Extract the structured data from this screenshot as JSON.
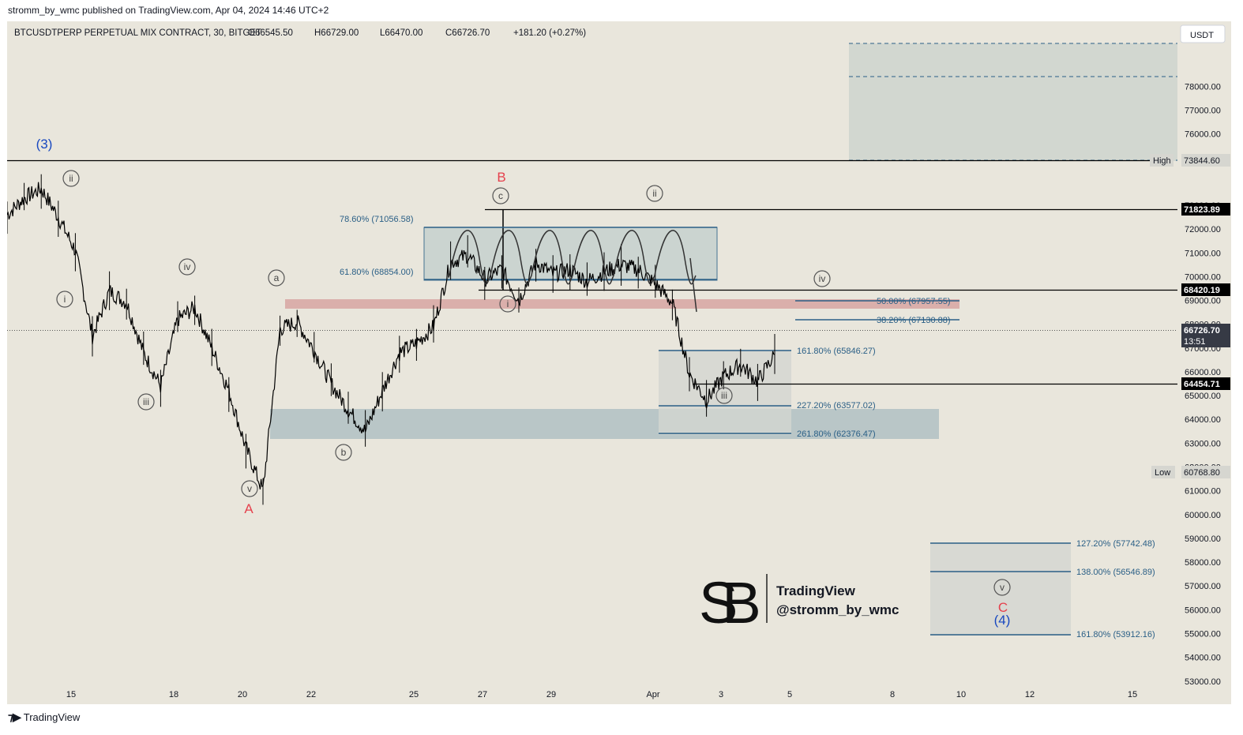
{
  "publish_line": "stromm_by_wmc published on TradingView.com, Apr 04, 2024 14:46 UTC+2",
  "footer_brand": "TradingView",
  "watermark": {
    "brand": "TradingView",
    "handle": "@stromm_by_wmc"
  },
  "colors": {
    "background": "#e9e6dc",
    "candle": "#000000",
    "zone_blue": "#7f9fae",
    "zone_red": "#d08b8b",
    "fib_line": "#2a5f86",
    "label_red": "#e5414d",
    "label_blue": "#1848c0"
  },
  "chart_data": {
    "type": "line",
    "header": {
      "symbol": "BTCUSDTPERP PERPETUAL MIX CONTRACT, 30, BITGET",
      "open": "O66545.50",
      "high": "H66729.00",
      "low": "L66470.00",
      "close": "C66726.70",
      "change": "+181.20 (+0.27%)"
    },
    "currency": "USDT",
    "ylim": [
      52000,
      79500
    ],
    "y_ticks": [
      "78000.00",
      "77000.00",
      "76000.00",
      "75000.00",
      "73000.00",
      "72000.00",
      "71000.00",
      "70000.00",
      "69000.00",
      "68000.00",
      "67000.00",
      "66000.00",
      "65000.00",
      "64000.00",
      "63000.00",
      "62000.00",
      "61000.00",
      "60000.00",
      "59000.00",
      "58000.00",
      "57000.00",
      "56000.00",
      "55000.00",
      "54000.00",
      "53000.00",
      "52000.00"
    ],
    "x_ticks": [
      "15",
      "18",
      "20",
      "22",
      "25",
      "27",
      "29",
      "Apr",
      "3",
      "5",
      "8",
      "10",
      "12",
      "15"
    ],
    "series": [
      {
        "x": [
          "Mar 13",
          "Mar 13 12h",
          "Mar 14",
          "Mar 14 12h",
          "Mar 15",
          "Mar 15 12h",
          "Mar 16",
          "Mar 16 12h",
          "Mar 17",
          "Mar 17 12h",
          "Mar 18",
          "Mar 18 12h",
          "Mar 19",
          "Mar 19 12h",
          "Mar 20",
          "Mar 20 12h",
          "Mar 21",
          "Mar 21 12h",
          "Mar 22",
          "Mar 22 12h",
          "Mar 23",
          "Mar 23 12h",
          "Mar 24",
          "Mar 24 12h",
          "Mar 25",
          "Mar 25 12h",
          "Mar 26",
          "Mar 26 12h",
          "Mar 27",
          "Mar 27 12h",
          "Mar 28",
          "Mar 28 12h",
          "Mar 29",
          "Mar 29 12h",
          "Mar 30",
          "Mar 30 12h",
          "Mar 31",
          "Mar 31 12h",
          "Apr 1",
          "Apr 1 12h",
          "Apr 2",
          "Apr 2 12h",
          "Apr 3",
          "Apr 3 12h",
          "Apr 4",
          "Apr 4 14h"
        ],
        "values": [
          72600,
          73300,
          73700,
          72500,
          71100,
          67500,
          69400,
          68900,
          66800,
          65400,
          68200,
          68700,
          67000,
          65200,
          62800,
          61000,
          67800,
          68100,
          66900,
          65500,
          64400,
          63500,
          65200,
          66800,
          67200,
          67900,
          70600,
          70900,
          69900,
          70300,
          69000,
          70600,
          70100,
          70300,
          69800,
          70200,
          70500,
          70300,
          69700,
          68900,
          65900,
          64800,
          65800,
          66300,
          65600,
          66727
        ]
      }
    ],
    "horizontal_levels": [
      {
        "label": "High",
        "value": "73844.60"
      },
      {
        "value": "71823.89"
      },
      {
        "value": "68420.19"
      },
      {
        "value": "66726.70",
        "countdown": "13:51",
        "current": true
      },
      {
        "value": "64454.71"
      },
      {
        "label": "Low",
        "value": "60768.80"
      }
    ],
    "fib_labels": [
      {
        "text": "78.60% (71056.58)",
        "value": 71056.58
      },
      {
        "text": "61.80% (68854.00)",
        "value": 68854
      },
      {
        "text": "50.00% (67957.55)",
        "value": 67957.55
      },
      {
        "text": "38.20% (67130.88)",
        "value": 67130.88
      },
      {
        "text": "161.80% (65846.27)",
        "value": 65846.27
      },
      {
        "text": "227.20% (63577.02)",
        "value": 63577.02
      },
      {
        "text": "261.80% (62376.47)",
        "value": 62376.47
      },
      {
        "text": "127.20% (57742.48)",
        "value": 57742.48
      },
      {
        "text": "138.00% (56546.89)",
        "value": 56546.89
      },
      {
        "text": "161.80% (53912.16)",
        "value": 53912.16
      }
    ],
    "wave_labels": [
      {
        "text": "(3)",
        "style": "blue"
      },
      {
        "text": "ii",
        "style": "circle"
      },
      {
        "text": "i",
        "style": "circle"
      },
      {
        "text": "iv",
        "style": "circle"
      },
      {
        "text": "iii",
        "style": "circle"
      },
      {
        "text": "a",
        "style": "circle"
      },
      {
        "text": "v",
        "style": "circle"
      },
      {
        "text": "A",
        "style": "red"
      },
      {
        "text": "b",
        "style": "circle"
      },
      {
        "text": "B",
        "style": "red"
      },
      {
        "text": "c",
        "style": "circle"
      },
      {
        "text": "i",
        "style": "circle"
      },
      {
        "text": "ii",
        "style": "circle"
      },
      {
        "text": "iv",
        "style": "circle"
      },
      {
        "text": "iii",
        "style": "circle"
      },
      {
        "text": "v",
        "style": "circle"
      },
      {
        "text": "C",
        "style": "red"
      },
      {
        "text": "(4)",
        "style": "blue"
      }
    ]
  }
}
